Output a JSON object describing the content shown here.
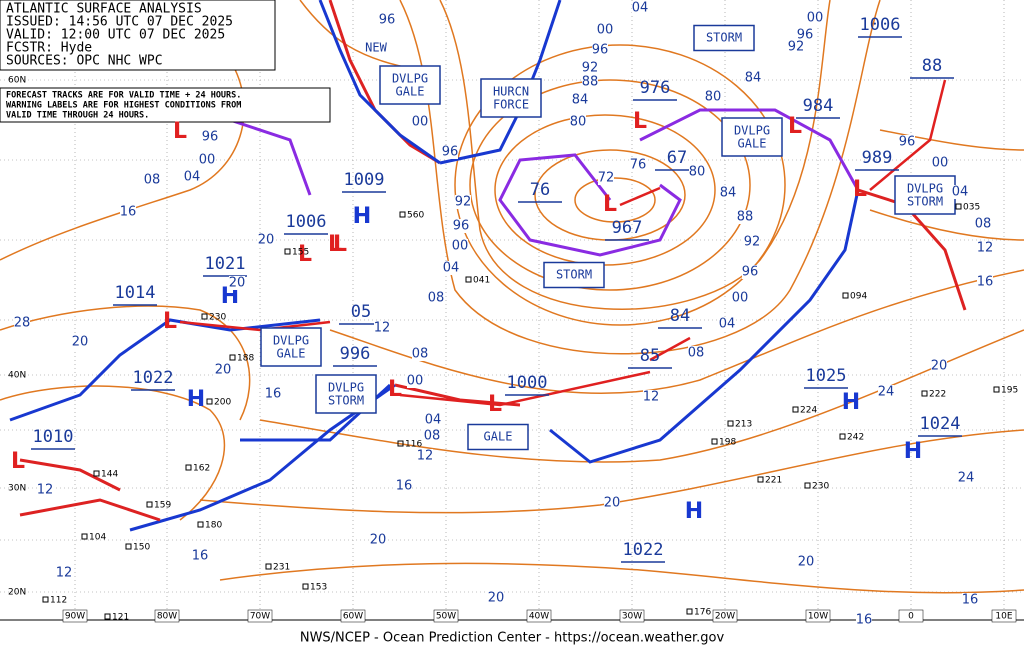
{
  "header": [
    "ATLANTIC SURFACE ANALYSIS",
    "ISSUED: 14:56 UTC 07 DEC 2025",
    "VALID: 12:00 UTC 07 DEC 2025",
    "FCSTR:  Hyde",
    "SOURCES: OPC NHC WPC"
  ],
  "note": [
    "FORECAST TRACKS ARE FOR VALID TIME + 24 HOURS.",
    "WARNING LABELS ARE FOR HIGHEST CONDITIONS FROM",
    "VALID TIME THROUGH 24 HOURS."
  ],
  "footer": "NWS/NCEP - Ocean Prediction Center - https://ocean.weather.gov",
  "centers": [
    "1006",
    "88",
    "984",
    "976",
    "67",
    "76",
    "967",
    "989",
    "1009",
    "1006",
    "1021",
    "1014",
    "05",
    "996",
    "84",
    "85",
    "1000",
    "1022",
    "1010",
    "1025",
    "1024",
    "1022"
  ],
  "symbols": [
    "L",
    "L",
    "L",
    "L",
    "L",
    "L",
    "L",
    "L",
    "L",
    "L",
    "L",
    "L",
    "H",
    "H",
    "H",
    "H",
    "H",
    "H",
    "H"
  ],
  "warnings": [
    "NEW",
    "DVLPG GALE",
    "HURCN FORCE",
    "STORM",
    "DVLPG GALE",
    "DVLPG STORM",
    "STORM",
    "DVLPG GALE",
    "DVLPG STORM",
    "GALE"
  ],
  "isobar_labels": [
    "04",
    "00",
    "96",
    "92",
    "88",
    "84",
    "80",
    "72",
    "76",
    "80",
    "84",
    "88",
    "92",
    "96",
    "00",
    "04",
    "08",
    "12",
    "96",
    "92",
    "96",
    "00",
    "04",
    "08",
    "12",
    "08",
    "00",
    "04",
    "08",
    "12",
    "16",
    "20",
    "20",
    "20",
    "16",
    "16",
    "20",
    "24",
    "24",
    "20",
    "16",
    "12",
    "08",
    "04",
    "00",
    "96",
    "00",
    "96",
    "92",
    "84",
    "80",
    "00",
    "96",
    "96",
    "00",
    "04",
    "08",
    "16",
    "20",
    "20",
    "16",
    "28",
    "20",
    "12",
    "12",
    "16",
    "20"
  ],
  "latitudes": [
    "60N",
    "40N",
    "30N",
    "20N"
  ],
  "longitudes": [
    "90W",
    "80W",
    "70W",
    "60W",
    "50W",
    "40W",
    "30W",
    "20W",
    "10W",
    "0",
    "10E"
  ],
  "stations": [
    "560",
    "155",
    "230",
    "041",
    "094",
    "222",
    "195",
    "224",
    "242",
    "213",
    "198",
    "221",
    "230",
    "116",
    "162",
    "144",
    "159",
    "180",
    "104",
    "150",
    "231",
    "153",
    "176",
    "112",
    "121",
    "188",
    "200",
    "035"
  ]
}
